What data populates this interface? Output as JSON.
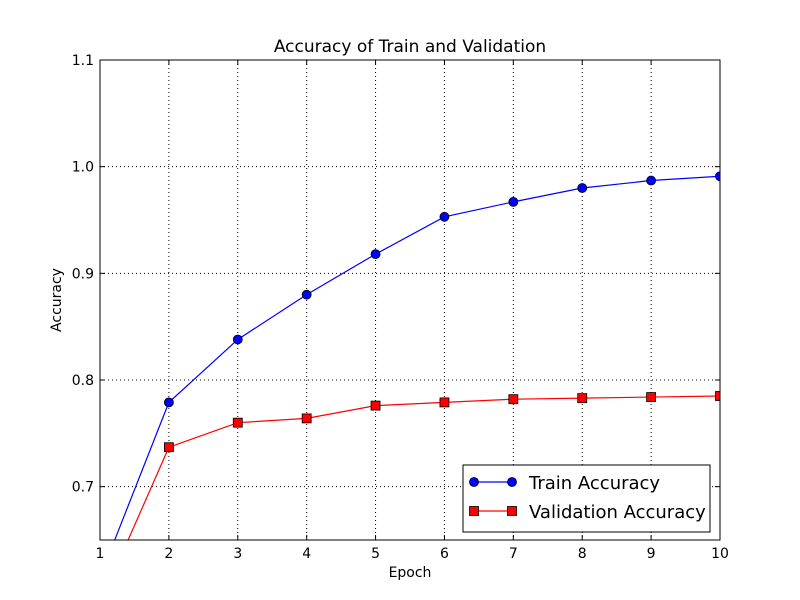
{
  "chart_data": {
    "type": "line",
    "title": "Accuracy of Train and Validation",
    "xlabel": "Epoch",
    "ylabel": "Accuracy",
    "xlim": [
      1,
      10
    ],
    "ylim": [
      0.65,
      1.1
    ],
    "x_ticks": [
      1,
      2,
      3,
      4,
      5,
      6,
      7,
      8,
      9,
      10
    ],
    "y_ticks": [
      0.7,
      0.8,
      0.9,
      1.0,
      1.1
    ],
    "y_tick_labels": [
      "0.7",
      "0.8",
      "0.9",
      "1.0",
      "1.1"
    ],
    "grid": true,
    "legend_position": "lower-right",
    "x": [
      1,
      2,
      3,
      4,
      5,
      6,
      7,
      8,
      9,
      10
    ],
    "series": [
      {
        "name": "Train Accuracy",
        "color": "#0000ff",
        "marker": "circle",
        "values": [
          0.615,
          0.779,
          0.838,
          0.88,
          0.918,
          0.953,
          0.967,
          0.98,
          0.987,
          0.991
        ]
      },
      {
        "name": "Validation Accuracy",
        "color": "#ff0000",
        "marker": "square",
        "values": [
          0.59,
          0.737,
          0.76,
          0.764,
          0.776,
          0.779,
          0.782,
          0.783,
          0.784,
          0.785
        ]
      }
    ]
  }
}
